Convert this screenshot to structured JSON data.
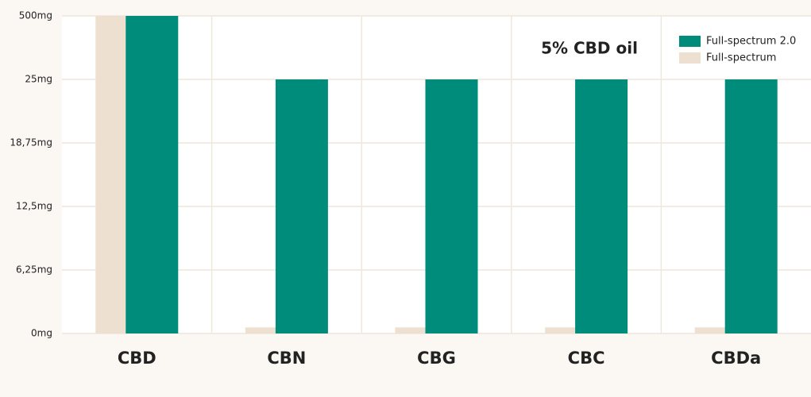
{
  "chart_data": {
    "type": "bar",
    "title": "5% CBD oil",
    "categories": [
      "CBD",
      "CBN",
      "CBG",
      "CBC",
      "CBDa"
    ],
    "series": [
      {
        "name": "Full-spectrum 2.0",
        "color": "#008c7a",
        "values": [
          500,
          25,
          25,
          25,
          25
        ]
      },
      {
        "name": "Full-spectrum",
        "color": "#ede0d1",
        "values": [
          500,
          0.6,
          0.6,
          0.6,
          0.6
        ]
      }
    ],
    "ylim": [
      0,
      500
    ],
    "yticks": [
      {
        "value": 0,
        "label": "0mg"
      },
      {
        "value": 6.25,
        "label": "6,25mg"
      },
      {
        "value": 12.5,
        "label": "12,5mg"
      },
      {
        "value": 18.75,
        "label": "18,75mg"
      },
      {
        "value": 25,
        "label": "25mg"
      },
      {
        "value": 500,
        "label": "500mg"
      }
    ],
    "grid": true,
    "legend": "top-right"
  }
}
